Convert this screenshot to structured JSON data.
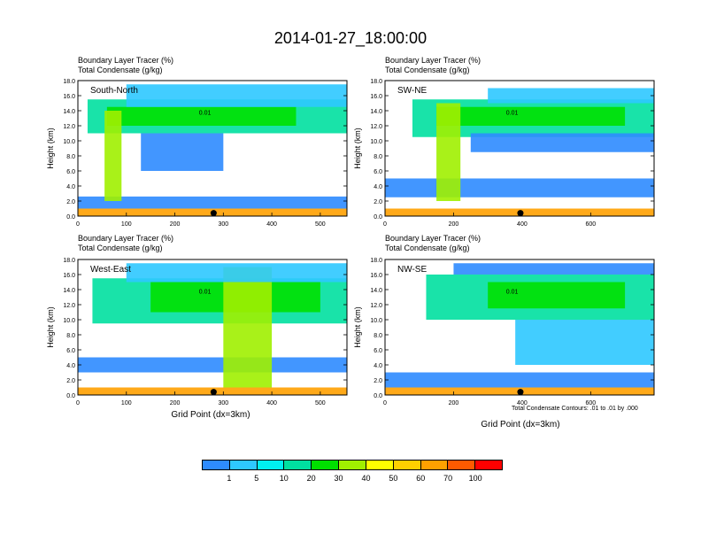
{
  "title": "2014-01-27_18:00:00",
  "label_line1": "Boundary Layer Tracer   (%)",
  "label_line2": "Total Condensate   (g/kg)",
  "ylabel": "Height (km)",
  "xlabel": "Grid Point (dx=3km)",
  "contour_note": "Total Condensate Contours: .01 to .01 by .000",
  "yticks": [
    "0.0",
    "2.0",
    "4.0",
    "6.0",
    "8.0",
    "10.0",
    "12.0",
    "14.0",
    "16.0",
    "18.0"
  ],
  "contour_label": "0.01",
  "colors": {
    "levels": [
      "#ffffff",
      "#2e8bff",
      "#2ec8ff",
      "#00f0f0",
      "#00e0a0",
      "#00e000",
      "#a0f000",
      "#ffff00",
      "#ffd000",
      "#ffa000",
      "#ff5a00",
      "#ff0000"
    ]
  },
  "colorbar_labels": [
    "1",
    "5",
    "10",
    "20",
    "30",
    "40",
    "50",
    "60",
    "70",
    "100"
  ],
  "chart_data": [
    {
      "type": "heatmap",
      "cross_section": "South-North",
      "xlim": [
        0,
        555
      ],
      "ylim": [
        0,
        18
      ],
      "xticks": [
        "0",
        "100",
        "200",
        "300",
        "400",
        "500"
      ],
      "marker_x": 280,
      "colorbar_levels": [
        1,
        5,
        10,
        20,
        30,
        40,
        50,
        60,
        70,
        100
      ],
      "regions": [
        {
          "level": 1,
          "x": [
            0,
            555
          ],
          "y": [
            1.0,
            2.6
          ]
        },
        {
          "level": 9,
          "x": [
            0,
            555
          ],
          "y": [
            0.0,
            1.0
          ]
        },
        {
          "level": 4,
          "x": [
            20,
            555
          ],
          "y": [
            11.0,
            15.5
          ]
        },
        {
          "level": 5,
          "x": [
            60,
            450
          ],
          "y": [
            12.0,
            14.5
          ]
        },
        {
          "level": 6,
          "x": [
            55,
            90
          ],
          "y": [
            2.0,
            14.0
          ]
        },
        {
          "level": 1,
          "x": [
            130,
            300
          ],
          "y": [
            6.0,
            11.0
          ]
        },
        {
          "level": 2,
          "x": [
            100,
            555
          ],
          "y": [
            14.5,
            17.5
          ]
        }
      ]
    },
    {
      "type": "heatmap",
      "cross_section": "SW-NE",
      "xlim": [
        0,
        785
      ],
      "ylim": [
        0,
        18
      ],
      "xticks": [
        "0",
        "200",
        "400",
        "600"
      ],
      "marker_x": 395,
      "colorbar_levels": [
        1,
        5,
        10,
        20,
        30,
        40,
        50,
        60,
        70,
        100
      ],
      "regions": [
        {
          "level": 1,
          "x": [
            0,
            785
          ],
          "y": [
            2.5,
            5.0
          ]
        },
        {
          "level": 9,
          "x": [
            0,
            785
          ],
          "y": [
            0.0,
            1.0
          ]
        },
        {
          "level": 4,
          "x": [
            80,
            785
          ],
          "y": [
            10.5,
            15.5
          ]
        },
        {
          "level": 5,
          "x": [
            150,
            700
          ],
          "y": [
            12.0,
            14.5
          ]
        },
        {
          "level": 6,
          "x": [
            150,
            220
          ],
          "y": [
            2.0,
            15.0
          ]
        },
        {
          "level": 1,
          "x": [
            250,
            785
          ],
          "y": [
            8.5,
            11.0
          ]
        },
        {
          "level": 2,
          "x": [
            300,
            785
          ],
          "y": [
            15.0,
            17.0
          ]
        }
      ]
    },
    {
      "type": "heatmap",
      "cross_section": "West-East",
      "xlim": [
        0,
        555
      ],
      "ylim": [
        0,
        18
      ],
      "xticks": [
        "0",
        "100",
        "200",
        "300",
        "400",
        "500"
      ],
      "marker_x": 280,
      "colorbar_levels": [
        1,
        5,
        10,
        20,
        30,
        40,
        50,
        60,
        70,
        100
      ],
      "regions": [
        {
          "level": 1,
          "x": [
            0,
            555
          ],
          "y": [
            3.0,
            5.0
          ]
        },
        {
          "level": 9,
          "x": [
            0,
            555
          ],
          "y": [
            0.0,
            1.0
          ]
        },
        {
          "level": 4,
          "x": [
            30,
            555
          ],
          "y": [
            9.5,
            15.5
          ]
        },
        {
          "level": 5,
          "x": [
            150,
            500
          ],
          "y": [
            11.0,
            15.0
          ]
        },
        {
          "level": 6,
          "x": [
            300,
            400
          ],
          "y": [
            1.0,
            17.0
          ]
        },
        {
          "level": 2,
          "x": [
            100,
            555
          ],
          "y": [
            15.0,
            17.5
          ]
        }
      ]
    },
    {
      "type": "heatmap",
      "cross_section": "NW-SE",
      "xlim": [
        0,
        785
      ],
      "ylim": [
        0,
        18
      ],
      "xticks": [
        "0",
        "200",
        "400",
        "600"
      ],
      "marker_x": 395,
      "colorbar_levels": [
        1,
        5,
        10,
        20,
        30,
        40,
        50,
        60,
        70,
        100
      ],
      "regions": [
        {
          "level": 1,
          "x": [
            0,
            785
          ],
          "y": [
            1.0,
            3.0
          ]
        },
        {
          "level": 9,
          "x": [
            0,
            785
          ],
          "y": [
            0.0,
            1.0
          ]
        },
        {
          "level": 4,
          "x": [
            120,
            785
          ],
          "y": [
            10.0,
            16.0
          ]
        },
        {
          "level": 5,
          "x": [
            300,
            700
          ],
          "y": [
            11.5,
            15.0
          ]
        },
        {
          "level": 2,
          "x": [
            380,
            785
          ],
          "y": [
            4.0,
            10.0
          ]
        },
        {
          "level": 1,
          "x": [
            200,
            785
          ],
          "y": [
            16.0,
            17.5
          ]
        }
      ]
    }
  ]
}
